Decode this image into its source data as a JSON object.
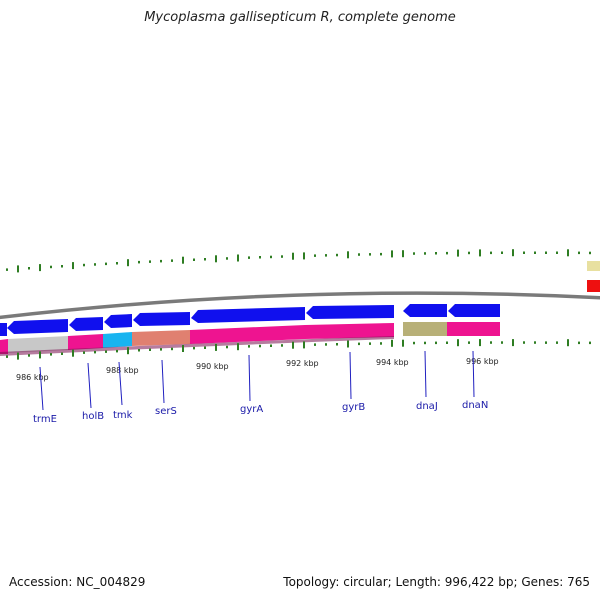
{
  "title": "Mycoplasma gallisepticum R, complete genome",
  "footer": {
    "accession": "Accession: NC_004829",
    "summary": "Topology: circular; Length: 996,422 bp; Genes: 765"
  },
  "colors": {
    "cds_arrow": "#1010ee",
    "backbone": "#808080",
    "gc_tick": "#2e7d22",
    "gene_label": "#1a1aa8",
    "leader_line": "#2020c0"
  },
  "scale": {
    "tick_labels": [
      "986 kbp",
      "988 kbp",
      "990 kbp",
      "992 kbp",
      "994 kbp",
      "996 kbp"
    ]
  },
  "genes": [
    {
      "name": "trmE",
      "color": "#c8c8c8"
    },
    {
      "name": "holB",
      "color": "#ee1490"
    },
    {
      "name": "tmk",
      "color": "#18b4f0"
    },
    {
      "name": "serS",
      "color": "#e08070"
    },
    {
      "name": "gyrA",
      "color": "#ee1490"
    },
    {
      "name": "gyrB",
      "color": "#ee1490"
    },
    {
      "name": "dnaJ",
      "color": "#b8b078"
    },
    {
      "name": "dnaN",
      "color": "#ee1490"
    }
  ]
}
